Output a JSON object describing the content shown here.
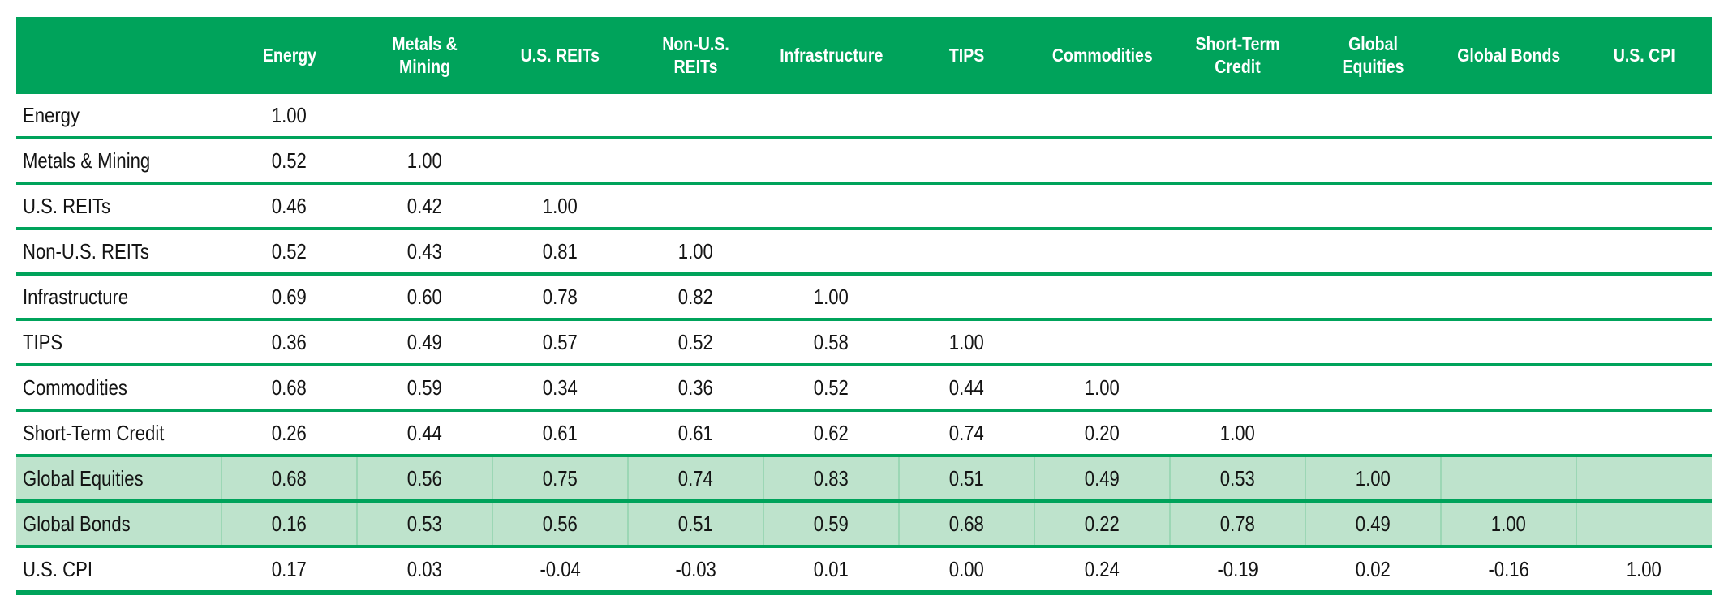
{
  "chart_data": {
    "type": "table",
    "layout": {
      "legend": "none",
      "grid": "green horizontal dividers between all rows, thick green bottom rule",
      "highlighted_rows": [
        "Global Equities",
        "Global Bonds"
      ]
    },
    "columns": [
      "",
      "Energy",
      "Metals & Mining",
      "U.S. REITs",
      "Non-U.S. REITs",
      "Infrastructure",
      "TIPS",
      "Commodities",
      "Short-Term Credit",
      "Global Equities",
      "Global Bonds",
      "U.S. CPI"
    ],
    "rows": [
      {
        "label": "Energy",
        "highlight": false,
        "values": [
          "1.00"
        ]
      },
      {
        "label": "Metals & Mining",
        "highlight": false,
        "values": [
          "0.52",
          "1.00"
        ]
      },
      {
        "label": "U.S. REITs",
        "highlight": false,
        "values": [
          "0.46",
          "0.42",
          "1.00"
        ]
      },
      {
        "label": "Non-U.S. REITs",
        "highlight": false,
        "values": [
          "0.52",
          "0.43",
          "0.81",
          "1.00"
        ]
      },
      {
        "label": "Infrastructure",
        "highlight": false,
        "values": [
          "0.69",
          "0.60",
          "0.78",
          "0.82",
          "1.00"
        ]
      },
      {
        "label": "TIPS",
        "highlight": false,
        "values": [
          "0.36",
          "0.49",
          "0.57",
          "0.52",
          "0.58",
          "1.00"
        ]
      },
      {
        "label": "Commodities",
        "highlight": false,
        "values": [
          "0.68",
          "0.59",
          "0.34",
          "0.36",
          "0.52",
          "0.44",
          "1.00"
        ]
      },
      {
        "label": "Short-Term Credit",
        "highlight": false,
        "values": [
          "0.26",
          "0.44",
          "0.61",
          "0.61",
          "0.62",
          "0.74",
          "0.20",
          "1.00"
        ]
      },
      {
        "label": "Global Equities",
        "highlight": true,
        "values": [
          "0.68",
          "0.56",
          "0.75",
          "0.74",
          "0.83",
          "0.51",
          "0.49",
          "0.53",
          "1.00"
        ]
      },
      {
        "label": "Global Bonds",
        "highlight": true,
        "values": [
          "0.16",
          "0.53",
          "0.56",
          "0.51",
          "0.59",
          "0.68",
          "0.22",
          "0.78",
          "0.49",
          "1.00"
        ]
      },
      {
        "label": "U.S. CPI",
        "highlight": false,
        "values": [
          "0.17",
          "0.03",
          "-0.04",
          "-0.03",
          "0.01",
          "0.00",
          "0.24",
          "-0.19",
          "0.02",
          "-0.16",
          "1.00"
        ]
      }
    ]
  },
  "colors": {
    "header_green": "#00A35B",
    "divider_green": "#00A35B",
    "row_highlight_green": "#BEE3CC",
    "highlight_cell_divider_green": "#9CD7B5",
    "header_text": "#FFFFFF",
    "body_text": "#141414",
    "background": "#FFFFFF"
  }
}
